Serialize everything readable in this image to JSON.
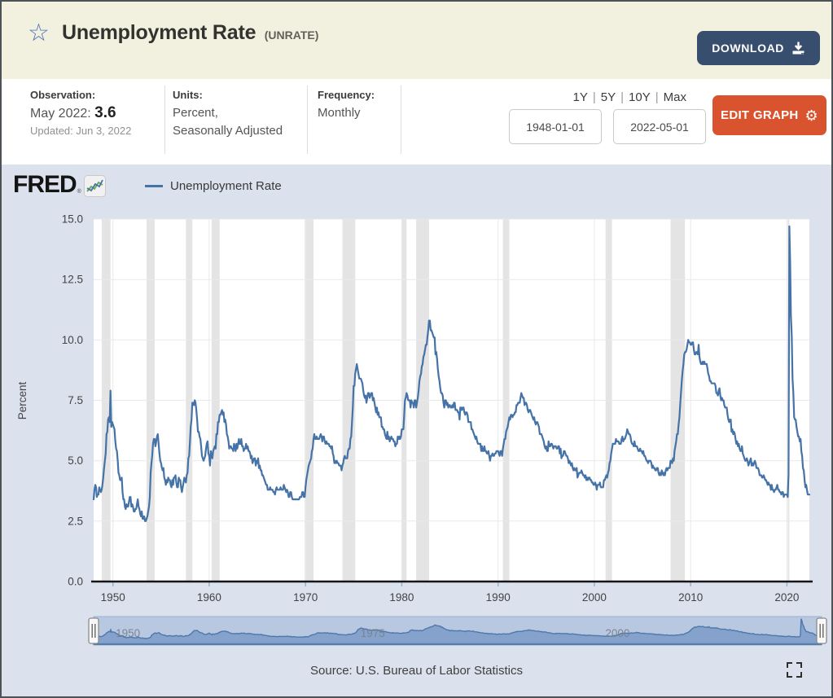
{
  "header": {
    "title": "Unemployment Rate",
    "series_id": "(UNRATE)",
    "download_label": "DOWNLOAD",
    "brand": "FRED",
    "brand_mark": "®"
  },
  "meta": {
    "observation_label": "Observation:",
    "observation_date": "May 2022:",
    "observation_value": "3.6",
    "updated": "Updated: Jun 3, 2022",
    "units_label": "Units:",
    "units_line1": "Percent,",
    "units_line2": "Seasonally Adjusted",
    "frequency_label": "Frequency:",
    "frequency_value": "Monthly",
    "range_links": [
      "1Y",
      "5Y",
      "10Y",
      "Max"
    ],
    "date_start": "1948-01-01",
    "date_end": "2022-05-01",
    "edit_graph_label": "EDIT GRAPH"
  },
  "graph": {
    "legend_label": "Unemployment Rate",
    "source_text": "Source: U.S. Bureau of Labor Statistics",
    "colors": {
      "line": "#4572a7",
      "plot_bg": "#ffffff",
      "grid": "#e9e9e9",
      "recession": "#e4e4e4",
      "axis": "#161616",
      "tick_text": "#434343",
      "slider_track": "#b9c8e1",
      "slider_area_fill": "#85a2cc",
      "slider_area_stroke": "#4e78ab",
      "slider_label": "#79828f"
    }
  },
  "chart_data": {
    "type": "line",
    "title": "Unemployment Rate (UNRATE)",
    "series_name": "Unemployment Rate",
    "ylabel": "Percent",
    "ylim": [
      0,
      15
    ],
    "yticks": [
      "0.0",
      "2.5",
      "5.0",
      "7.5",
      "10.0",
      "12.5",
      "15.0"
    ],
    "xticks": [
      1950,
      1960,
      1970,
      1980,
      1990,
      2000,
      2010,
      2020
    ],
    "x_start": 1948.0,
    "x_end": 2022.3333,
    "frequency": "monthly",
    "slider_labels": [
      [
        "1950",
        1950
      ],
      [
        "1975",
        1975
      ],
      [
        "2000",
        2000
      ]
    ],
    "recessions": [
      [
        1948.833,
        1949.75
      ],
      [
        1953.5,
        1954.333
      ],
      [
        1957.583,
        1958.25
      ],
      [
        1960.25,
        1961.083
      ],
      [
        1969.917,
        1970.833
      ],
      [
        1973.833,
        1975.167
      ],
      [
        1980.0,
        1980.5
      ],
      [
        1981.5,
        1982.833
      ],
      [
        1990.5,
        1991.167
      ],
      [
        2001.167,
        2001.833
      ],
      [
        2007.917,
        2009.417
      ],
      [
        2020.083,
        2020.25
      ]
    ],
    "values_by_year": {
      "1948": [
        3.4,
        3.8,
        4.0,
        3.9,
        3.5,
        3.6,
        3.6,
        3.9,
        3.8,
        3.7,
        3.8,
        4.0
      ],
      "1949": [
        4.3,
        4.7,
        5.0,
        5.3,
        6.1,
        6.2,
        6.7,
        6.8,
        6.6,
        7.9,
        6.4,
        6.6
      ],
      "1950": [
        6.5,
        6.4,
        6.3,
        5.8,
        5.5,
        5.4,
        5.0,
        4.5,
        4.4,
        4.2,
        4.2,
        4.3
      ],
      "1951": [
        3.7,
        3.4,
        3.4,
        3.1,
        3.0,
        3.2,
        3.1,
        3.1,
        3.3,
        3.5,
        3.5,
        3.1
      ],
      "1952": [
        3.2,
        3.1,
        2.9,
        2.9,
        3.0,
        3.0,
        3.2,
        3.4,
        3.1,
        3.0,
        2.8,
        2.7
      ],
      "1953": [
        2.9,
        2.6,
        2.6,
        2.7,
        2.5,
        2.5,
        2.6,
        2.7,
        2.9,
        3.1,
        3.5,
        4.5
      ],
      "1954": [
        4.9,
        5.2,
        5.7,
        5.9,
        5.9,
        5.6,
        5.8,
        6.0,
        6.1,
        5.7,
        5.3,
        5.0
      ],
      "1955": [
        4.9,
        4.7,
        4.6,
        4.7,
        4.3,
        4.2,
        4.0,
        4.2,
        4.1,
        4.3,
        4.2,
        4.2
      ],
      "1956": [
        4.0,
        3.9,
        4.2,
        4.0,
        4.3,
        4.3,
        4.4,
        4.1,
        3.9,
        3.9,
        4.3,
        4.2
      ],
      "1957": [
        4.2,
        3.9,
        3.7,
        3.9,
        4.1,
        4.3,
        4.2,
        4.1,
        4.4,
        4.5,
        5.1,
        5.2
      ],
      "1958": [
        5.8,
        6.4,
        6.7,
        7.4,
        7.4,
        7.3,
        7.5,
        7.4,
        7.1,
        6.7,
        6.2,
        6.2
      ],
      "1959": [
        6.0,
        5.9,
        5.6,
        5.2,
        5.1,
        5.0,
        5.1,
        5.2,
        5.5,
        5.7,
        5.8,
        5.3
      ],
      "1960": [
        5.2,
        4.8,
        5.4,
        5.2,
        5.1,
        5.4,
        5.5,
        5.6,
        5.5,
        6.1,
        6.1,
        6.6
      ],
      "1961": [
        6.6,
        6.9,
        6.9,
        7.0,
        7.1,
        6.9,
        7.0,
        6.6,
        6.7,
        6.5,
        6.1,
        6.0
      ],
      "1962": [
        5.8,
        5.5,
        5.6,
        5.6,
        5.5,
        5.5,
        5.4,
        5.7,
        5.6,
        5.4,
        5.7,
        5.5
      ],
      "1963": [
        5.7,
        5.9,
        5.7,
        5.7,
        5.9,
        5.6,
        5.6,
        5.4,
        5.5,
        5.5,
        5.7,
        5.5
      ],
      "1964": [
        5.6,
        5.4,
        5.4,
        5.3,
        5.1,
        5.2,
        4.9,
        5.0,
        5.1,
        5.1,
        4.8,
        5.0
      ],
      "1965": [
        4.9,
        5.1,
        4.7,
        4.8,
        4.6,
        4.6,
        4.4,
        4.4,
        4.3,
        4.2,
        4.1,
        4.0
      ],
      "1966": [
        4.0,
        3.8,
        3.8,
        3.8,
        3.9,
        3.8,
        3.8,
        3.8,
        3.7,
        3.7,
        3.6,
        3.8
      ],
      "1967": [
        3.9,
        3.8,
        3.8,
        3.8,
        3.8,
        3.9,
        3.8,
        3.8,
        3.8,
        4.0,
        3.9,
        3.8
      ],
      "1968": [
        3.7,
        3.8,
        3.7,
        3.5,
        3.5,
        3.7,
        3.7,
        3.5,
        3.4,
        3.4,
        3.4,
        3.4
      ],
      "1969": [
        3.4,
        3.4,
        3.4,
        3.4,
        3.4,
        3.5,
        3.5,
        3.5,
        3.7,
        3.7,
        3.5,
        3.5
      ],
      "1970": [
        3.9,
        4.2,
        4.4,
        4.6,
        4.8,
        4.9,
        5.0,
        5.1,
        5.4,
        5.5,
        5.9,
        6.1
      ],
      "1971": [
        5.9,
        5.9,
        6.0,
        5.9,
        5.9,
        5.9,
        6.0,
        6.1,
        6.0,
        5.8,
        6.0,
        6.0
      ],
      "1972": [
        5.8,
        5.7,
        5.8,
        5.7,
        5.7,
        5.7,
        5.6,
        5.6,
        5.5,
        5.6,
        5.3,
        5.2
      ],
      "1973": [
        4.9,
        5.0,
        4.9,
        5.0,
        4.9,
        4.9,
        4.8,
        4.8,
        4.8,
        4.6,
        4.8,
        4.9
      ],
      "1974": [
        5.1,
        5.2,
        5.1,
        5.1,
        5.1,
        5.4,
        5.5,
        5.5,
        5.9,
        6.0,
        6.6,
        7.2
      ],
      "1975": [
        8.1,
        8.1,
        8.6,
        8.8,
        9.0,
        8.8,
        8.6,
        8.4,
        8.4,
        8.4,
        8.3,
        8.2
      ],
      "1976": [
        7.9,
        7.7,
        7.6,
        7.7,
        7.4,
        7.6,
        7.8,
        7.8,
        7.6,
        7.7,
        7.8,
        7.8
      ],
      "1977": [
        7.5,
        7.6,
        7.4,
        7.2,
        7.0,
        7.2,
        6.9,
        7.0,
        6.8,
        6.8,
        6.8,
        6.4
      ],
      "1978": [
        6.4,
        6.3,
        6.3,
        6.1,
        6.0,
        5.9,
        6.2,
        5.9,
        6.0,
        5.8,
        5.9,
        6.0
      ],
      "1979": [
        5.9,
        5.9,
        5.8,
        5.8,
        5.6,
        5.7,
        5.7,
        6.0,
        5.9,
        6.0,
        5.9,
        6.0
      ],
      "1980": [
        6.3,
        6.3,
        6.3,
        6.9,
        7.5,
        7.6,
        7.8,
        7.7,
        7.5,
        7.5,
        7.5,
        7.2
      ],
      "1981": [
        7.5,
        7.4,
        7.4,
        7.2,
        7.5,
        7.5,
        7.2,
        7.4,
        7.6,
        7.9,
        8.3,
        8.5
      ],
      "1982": [
        8.6,
        8.9,
        9.0,
        9.3,
        9.4,
        9.6,
        9.8,
        9.8,
        10.1,
        10.4,
        10.8,
        10.8
      ],
      "1983": [
        10.4,
        10.4,
        10.3,
        10.2,
        10.1,
        10.1,
        9.4,
        9.5,
        9.2,
        8.8,
        8.5,
        8.3
      ],
      "1984": [
        8.0,
        7.8,
        7.8,
        7.7,
        7.4,
        7.2,
        7.5,
        7.5,
        7.3,
        7.4,
        7.2,
        7.3
      ],
      "1985": [
        7.3,
        7.2,
        7.2,
        7.3,
        7.2,
        7.4,
        7.4,
        7.1,
        7.1,
        7.1,
        7.0,
        7.0
      ],
      "1986": [
        6.7,
        7.2,
        7.2,
        7.1,
        7.2,
        7.2,
        7.0,
        6.9,
        7.0,
        7.0,
        6.9,
        6.6
      ],
      "1987": [
        6.6,
        6.6,
        6.6,
        6.3,
        6.3,
        6.2,
        6.1,
        6.0,
        5.9,
        6.0,
        5.8,
        5.7
      ],
      "1988": [
        5.7,
        5.7,
        5.7,
        5.4,
        5.6,
        5.4,
        5.4,
        5.6,
        5.4,
        5.4,
        5.3,
        5.3
      ],
      "1989": [
        5.4,
        5.2,
        5.0,
        5.2,
        5.2,
        5.3,
        5.2,
        5.2,
        5.3,
        5.3,
        5.4,
        5.4
      ],
      "1990": [
        5.4,
        5.3,
        5.2,
        5.4,
        5.4,
        5.2,
        5.5,
        5.7,
        5.9,
        5.9,
        6.2,
        6.3
      ],
      "1991": [
        6.4,
        6.6,
        6.8,
        6.7,
        6.9,
        6.9,
        6.8,
        6.9,
        6.9,
        7.0,
        7.0,
        7.3
      ],
      "1992": [
        7.3,
        7.4,
        7.4,
        7.4,
        7.6,
        7.8,
        7.7,
        7.6,
        7.6,
        7.3,
        7.4,
        7.4
      ],
      "1993": [
        7.3,
        7.1,
        7.0,
        7.1,
        7.1,
        7.0,
        6.9,
        6.8,
        6.7,
        6.8,
        6.6,
        6.5
      ],
      "1994": [
        6.6,
        6.6,
        6.5,
        6.4,
        6.1,
        6.1,
        6.1,
        6.0,
        5.9,
        5.8,
        5.6,
        5.5
      ],
      "1995": [
        5.6,
        5.4,
        5.4,
        5.8,
        5.6,
        5.6,
        5.7,
        5.7,
        5.6,
        5.5,
        5.6,
        5.6
      ],
      "1996": [
        5.6,
        5.5,
        5.5,
        5.6,
        5.6,
        5.3,
        5.5,
        5.1,
        5.2,
        5.2,
        5.4,
        5.4
      ],
      "1997": [
        5.3,
        5.2,
        5.2,
        5.1,
        4.9,
        5.0,
        4.9,
        4.8,
        4.9,
        4.7,
        4.6,
        4.7
      ],
      "1998": [
        4.6,
        4.6,
        4.7,
        4.3,
        4.4,
        4.5,
        4.5,
        4.5,
        4.6,
        4.5,
        4.4,
        4.4
      ],
      "1999": [
        4.3,
        4.4,
        4.2,
        4.3,
        4.2,
        4.3,
        4.3,
        4.2,
        4.2,
        4.1,
        4.1,
        4.0
      ],
      "2000": [
        4.0,
        4.1,
        4.0,
        3.8,
        4.0,
        4.0,
        4.0,
        4.1,
        3.9,
        3.9,
        3.9,
        3.9
      ],
      "2001": [
        4.2,
        4.2,
        4.3,
        4.4,
        4.3,
        4.5,
        4.6,
        4.9,
        5.0,
        5.3,
        5.5,
        5.7
      ],
      "2002": [
        5.7,
        5.7,
        5.7,
        5.9,
        5.8,
        5.8,
        5.8,
        5.7,
        5.7,
        5.7,
        5.9,
        6.0
      ],
      "2003": [
        5.8,
        5.9,
        5.9,
        6.0,
        6.1,
        6.3,
        6.2,
        6.1,
        6.1,
        6.0,
        5.8,
        5.7
      ],
      "2004": [
        5.7,
        5.6,
        5.8,
        5.6,
        5.6,
        5.6,
        5.5,
        5.4,
        5.4,
        5.5,
        5.4,
        5.4
      ],
      "2005": [
        5.3,
        5.4,
        5.2,
        5.2,
        5.1,
        5.0,
        5.0,
        4.9,
        5.0,
        5.0,
        5.0,
        4.9
      ],
      "2006": [
        4.7,
        4.8,
        4.7,
        4.7,
        4.6,
        4.6,
        4.7,
        4.7,
        4.5,
        4.4,
        4.5,
        4.4
      ],
      "2007": [
        4.6,
        4.5,
        4.4,
        4.5,
        4.4,
        4.6,
        4.7,
        4.6,
        4.7,
        4.7,
        4.7,
        5.0
      ],
      "2008": [
        5.0,
        4.9,
        5.1,
        5.0,
        5.4,
        5.6,
        5.8,
        6.1,
        6.1,
        6.5,
        6.8,
        7.3
      ],
      "2009": [
        7.8,
        8.3,
        8.7,
        9.0,
        9.4,
        9.5,
        9.5,
        9.6,
        9.8,
        10.0,
        9.9,
        9.9
      ],
      "2010": [
        9.8,
        9.8,
        9.9,
        9.9,
        9.6,
        9.4,
        9.4,
        9.5,
        9.5,
        9.4,
        9.8,
        9.3
      ],
      "2011": [
        9.1,
        9.0,
        9.0,
        9.1,
        9.0,
        9.1,
        9.0,
        9.0,
        9.0,
        8.8,
        8.6,
        8.5
      ],
      "2012": [
        8.3,
        8.3,
        8.2,
        8.2,
        8.2,
        8.2,
        8.2,
        8.1,
        7.8,
        7.8,
        7.7,
        7.9
      ],
      "2013": [
        8.0,
        7.7,
        7.5,
        7.6,
        7.5,
        7.5,
        7.3,
        7.2,
        7.2,
        7.2,
        6.9,
        6.7
      ],
      "2014": [
        6.6,
        6.7,
        6.7,
        6.2,
        6.3,
        6.1,
        6.2,
        6.1,
        5.9,
        5.7,
        5.8,
        5.6
      ],
      "2015": [
        5.7,
        5.5,
        5.4,
        5.4,
        5.6,
        5.3,
        5.2,
        5.1,
        5.0,
        5.0,
        5.1,
        5.0
      ],
      "2016": [
        4.8,
        4.9,
        5.0,
        5.1,
        4.8,
        4.9,
        4.8,
        4.9,
        5.0,
        4.9,
        4.7,
        4.7
      ],
      "2017": [
        4.7,
        4.6,
        4.4,
        4.4,
        4.4,
        4.3,
        4.3,
        4.4,
        4.3,
        4.2,
        4.2,
        4.1
      ],
      "2018": [
        4.0,
        4.1,
        4.0,
        4.0,
        3.8,
        4.0,
        3.8,
        3.8,
        3.7,
        3.8,
        3.8,
        3.9
      ],
      "2019": [
        4.0,
        3.8,
        3.8,
        3.7,
        3.7,
        3.6,
        3.7,
        3.7,
        3.5,
        3.6,
        3.6,
        3.6
      ],
      "2020": [
        3.6,
        3.5,
        4.4,
        14.7,
        13.2,
        11.0,
        10.2,
        8.4,
        7.8,
        6.8,
        6.7,
        6.7
      ],
      "2021": [
        6.4,
        6.2,
        6.0,
        6.0,
        5.8,
        5.9,
        5.4,
        5.2,
        4.7,
        4.6,
        4.2,
        3.9
      ],
      "2022": [
        4.0,
        3.8,
        3.6,
        3.6,
        3.6
      ]
    }
  }
}
